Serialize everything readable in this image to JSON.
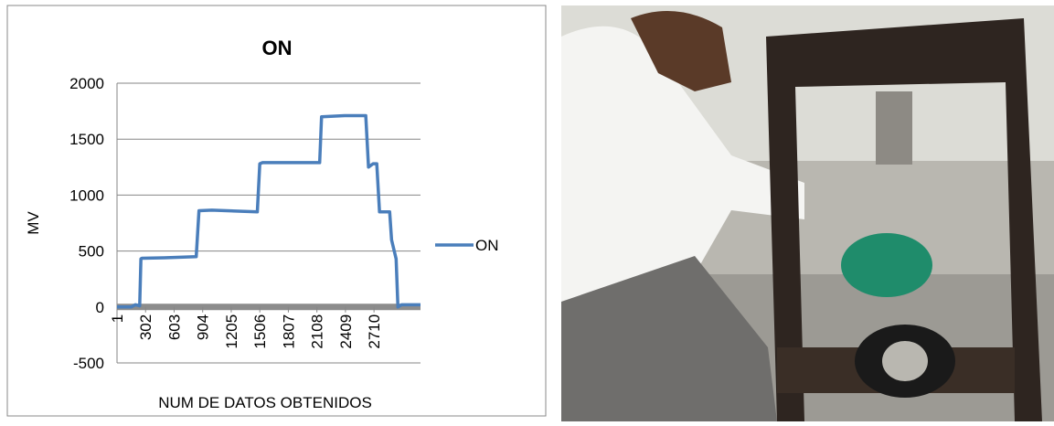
{
  "chart_data": {
    "type": "line",
    "title": "ON",
    "y_label": "MV",
    "x_label": "NUM DE DATOS OBTENIDOS",
    "x": [
      1,
      150,
      195,
      240,
      253,
      263,
      500,
      836,
      865,
      1000,
      1480,
      1506,
      1535,
      1800,
      2137,
      2157,
      2400,
      2623,
      2652,
      2700,
      2739,
      2768,
      2875,
      2895,
      2943,
      2962,
      3000,
      3200
    ],
    "series": [
      {
        "name": "ON",
        "color": "#4a7ebb",
        "values": [
          0,
          0,
          20,
          10,
          430,
          435,
          440,
          450,
          860,
          865,
          850,
          1280,
          1290,
          1290,
          1290,
          1700,
          1710,
          1710,
          1250,
          1280,
          1280,
          850,
          850,
          600,
          430,
          0,
          20,
          20
        ]
      }
    ],
    "xlim": [
      1,
      3200
    ],
    "xticks": [
      1,
      302,
      603,
      904,
      1205,
      1506,
      1807,
      2108,
      2409,
      2710
    ],
    "ylim": [
      -500,
      2000
    ],
    "yticks": [
      -500,
      0,
      500,
      1000,
      1500,
      2000
    ],
    "grid": true,
    "legend": "right"
  }
}
